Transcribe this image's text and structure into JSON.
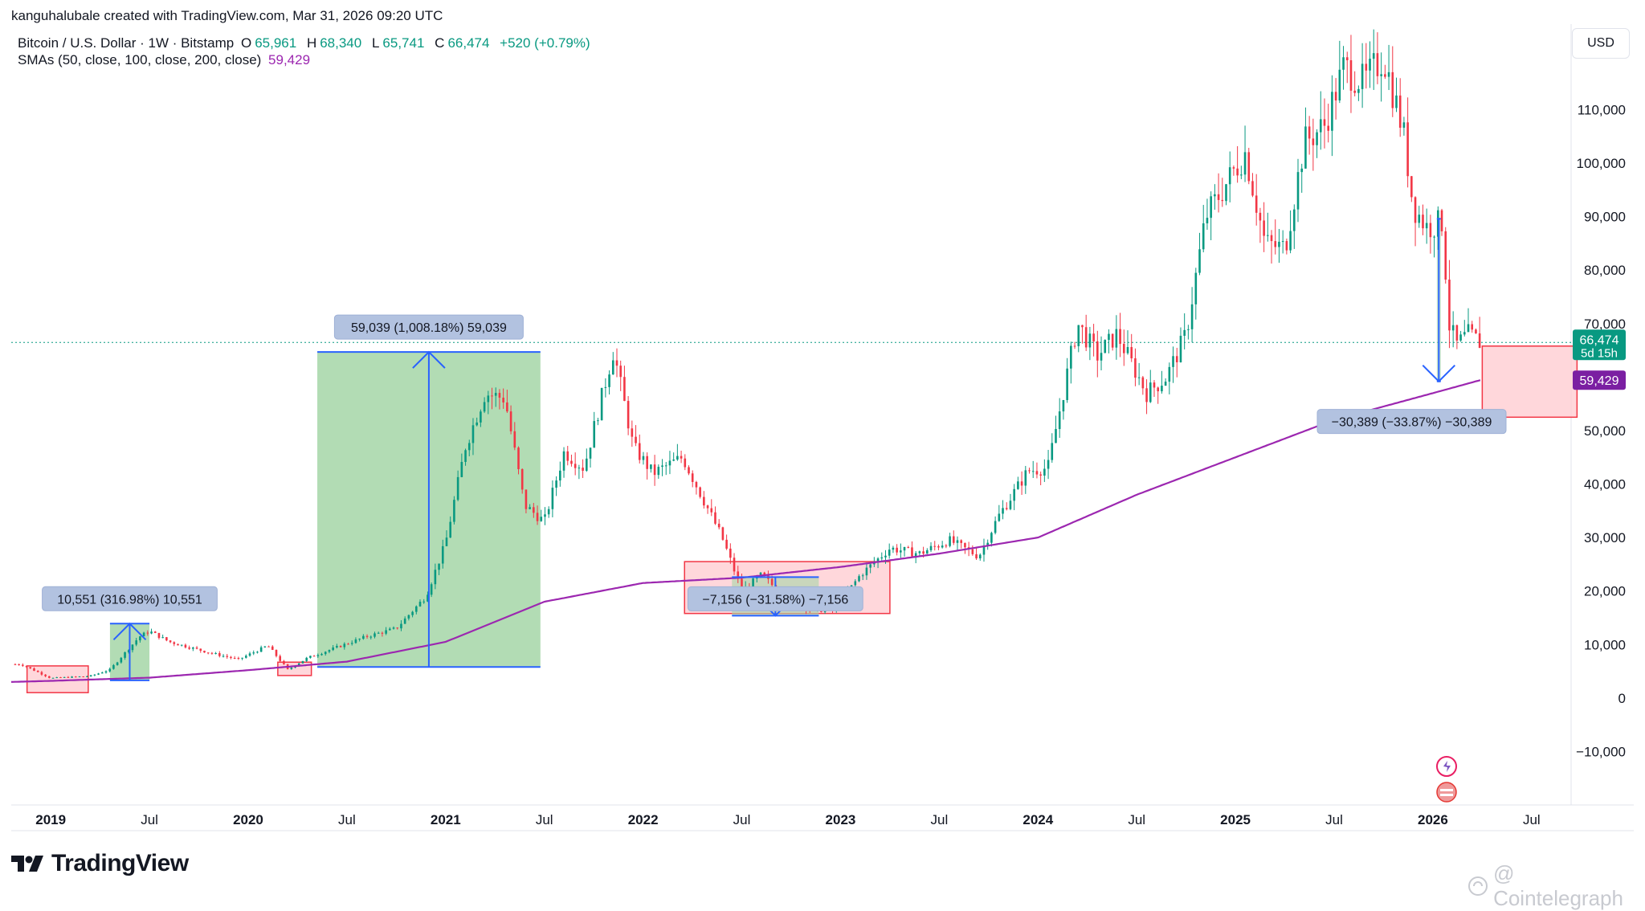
{
  "header": {
    "author_line": "kanguhalubale created with TradingView.com, Mar 31, 2026 09:20 UTC"
  },
  "legend": {
    "symbol": "Bitcoin / U.S. Dollar · 1W · Bitstamp",
    "open_label": "O",
    "open": "65,961",
    "high_label": "H",
    "high": "68,340",
    "low_label": "L",
    "low": "65,741",
    "close_label": "C",
    "close": "66,474",
    "change": "+520 (+0.79%)",
    "sma_label": "SMAs (50, close, 100, close, 200, close)",
    "sma_value": "59,429"
  },
  "currency": "USD",
  "brand": "TradingView",
  "watermark": "@ Cointelegraph",
  "colors": {
    "up": "#089981",
    "down": "#f23645",
    "sma": "#9c27b0",
    "measure_up_fill": "#a5d6a7",
    "measure_down_fill": "#ffcdd2",
    "measure_line": "#2962ff"
  },
  "chart_data": {
    "type": "candlestick",
    "x_unit": "year",
    "xlim": [
      2018.8,
      2026.7
    ],
    "ylim": [
      -20000,
      126000
    ],
    "y_ticks": [
      -10000,
      0,
      10000,
      20000,
      30000,
      40000,
      50000,
      60000,
      70000,
      80000,
      90000,
      100000,
      110000
    ],
    "y_tick_labels": [
      "−10,000",
      "0",
      "10,000",
      "20,000",
      "30,000",
      "40,000",
      "50,000",
      "60,000",
      "70,000",
      "80,000",
      "90,000",
      "100,000",
      "110,000"
    ],
    "x_ticks": [
      {
        "x": 2019.0,
        "label": "2019",
        "bold": true
      },
      {
        "x": 2019.5,
        "label": "Jul",
        "bold": false
      },
      {
        "x": 2020.0,
        "label": "2020",
        "bold": true
      },
      {
        "x": 2020.5,
        "label": "Jul",
        "bold": false
      },
      {
        "x": 2021.0,
        "label": "2021",
        "bold": true
      },
      {
        "x": 2021.5,
        "label": "Jul",
        "bold": false
      },
      {
        "x": 2022.0,
        "label": "2022",
        "bold": true
      },
      {
        "x": 2022.5,
        "label": "Jul",
        "bold": false
      },
      {
        "x": 2023.0,
        "label": "2023",
        "bold": true
      },
      {
        "x": 2023.5,
        "label": "Jul",
        "bold": false
      },
      {
        "x": 2024.0,
        "label": "2024",
        "bold": true
      },
      {
        "x": 2024.5,
        "label": "Jul",
        "bold": false
      },
      {
        "x": 2025.0,
        "label": "2025",
        "bold": true
      },
      {
        "x": 2025.5,
        "label": "Jul",
        "bold": false
      },
      {
        "x": 2026.0,
        "label": "2026",
        "bold": true
      },
      {
        "x": 2026.5,
        "label": "Jul",
        "bold": false
      }
    ],
    "price_anchors": [
      [
        2018.85,
        6300
      ],
      [
        2019.0,
        3700
      ],
      [
        2019.2,
        4100
      ],
      [
        2019.3,
        5300
      ],
      [
        2019.45,
        11500
      ],
      [
        2019.5,
        12500
      ],
      [
        2019.6,
        10500
      ],
      [
        2019.8,
        8500
      ],
      [
        2019.95,
        7200
      ],
      [
        2020.1,
        9800
      ],
      [
        2020.2,
        5300
      ],
      [
        2020.3,
        7500
      ],
      [
        2020.45,
        9500
      ],
      [
        2020.6,
        11500
      ],
      [
        2020.75,
        13000
      ],
      [
        2020.9,
        19000
      ],
      [
        2021.0,
        29000
      ],
      [
        2021.1,
        47000
      ],
      [
        2021.2,
        57000
      ],
      [
        2021.3,
        56000
      ],
      [
        2021.4,
        36000
      ],
      [
        2021.5,
        33000
      ],
      [
        2021.6,
        46000
      ],
      [
        2021.7,
        43000
      ],
      [
        2021.85,
        65000
      ],
      [
        2021.95,
        47000
      ],
      [
        2022.05,
        42000
      ],
      [
        2022.2,
        45000
      ],
      [
        2022.4,
        30000
      ],
      [
        2022.5,
        20000
      ],
      [
        2022.6,
        23000
      ],
      [
        2022.7,
        19500
      ],
      [
        2022.85,
        16500
      ],
      [
        2022.97,
        16500
      ],
      [
        2023.1,
        23000
      ],
      [
        2023.25,
        28000
      ],
      [
        2023.4,
        27000
      ],
      [
        2023.55,
        29500
      ],
      [
        2023.7,
        26500
      ],
      [
        2023.8,
        34000
      ],
      [
        2023.95,
        42500
      ],
      [
        2024.05,
        43000
      ],
      [
        2024.2,
        70000
      ],
      [
        2024.3,
        64000
      ],
      [
        2024.4,
        68000
      ],
      [
        2024.55,
        57000
      ],
      [
        2024.65,
        60000
      ],
      [
        2024.75,
        68000
      ],
      [
        2024.85,
        90000
      ],
      [
        2024.95,
        96000
      ],
      [
        2025.05,
        102000
      ],
      [
        2025.15,
        85000
      ],
      [
        2025.25,
        84000
      ],
      [
        2025.35,
        104000
      ],
      [
        2025.45,
        107000
      ],
      [
        2025.55,
        118000
      ],
      [
        2025.65,
        115000
      ],
      [
        2025.75,
        120000
      ],
      [
        2025.85,
        106000
      ],
      [
        2025.9,
        92000
      ],
      [
        2025.97,
        88000
      ],
      [
        2026.05,
        89000
      ],
      [
        2026.08,
        70000
      ],
      [
        2026.12,
        66000
      ],
      [
        2026.18,
        68000
      ],
      [
        2026.24,
        66474
      ]
    ],
    "sma200_anchors": [
      [
        2018.8,
        3000
      ],
      [
        2019.0,
        3200
      ],
      [
        2019.5,
        3800
      ],
      [
        2020.0,
        5200
      ],
      [
        2020.5,
        6800
      ],
      [
        2021.0,
        10500
      ],
      [
        2021.5,
        18000
      ],
      [
        2022.0,
        21500
      ],
      [
        2022.5,
        22500
      ],
      [
        2023.0,
        24500
      ],
      [
        2023.5,
        27000
      ],
      [
        2024.0,
        30000
      ],
      [
        2024.5,
        38000
      ],
      [
        2025.0,
        45000
      ],
      [
        2025.5,
        52000
      ],
      [
        2026.0,
        57000
      ],
      [
        2026.24,
        59429
      ]
    ],
    "measurements": [
      {
        "kind": "up",
        "x0": 2019.3,
        "x1": 2019.5,
        "y0": 3300,
        "y1": 13900,
        "label": "10,551 (316.98%) 10,551"
      },
      {
        "kind": "up",
        "x0": 2020.35,
        "x1": 2021.48,
        "y0": 5800,
        "y1": 64700,
        "label": "59,039 (1,008.18%) 59,039"
      },
      {
        "kind": "down",
        "x0": 2022.45,
        "x1": 2022.89,
        "y0": 22600,
        "y1": 15400,
        "label": "−7,156 (−31.58%) −7,156"
      },
      {
        "kind": "down",
        "x0": 2026.02,
        "x1": 2026.04,
        "y0": 89600,
        "y1": 59200,
        "label": "−30,389 (−33.87%) −30,389"
      }
    ],
    "zones": [
      {
        "x0": 2018.88,
        "x1": 2019.19,
        "y0": 1000,
        "y1": 6000
      },
      {
        "x0": 2020.15,
        "x1": 2020.32,
        "y0": 4200,
        "y1": 6700
      },
      {
        "x0": 2022.21,
        "x1": 2023.25,
        "y0": 15800,
        "y1": 25500
      },
      {
        "x0": 2026.25,
        "x1": 2026.73,
        "y0": 52500,
        "y1": 65800
      }
    ],
    "price_label": {
      "value": 66474,
      "text": "66,474",
      "countdown": "5d 15h"
    },
    "sma_label": {
      "value": 59429,
      "text": "59,429"
    }
  }
}
